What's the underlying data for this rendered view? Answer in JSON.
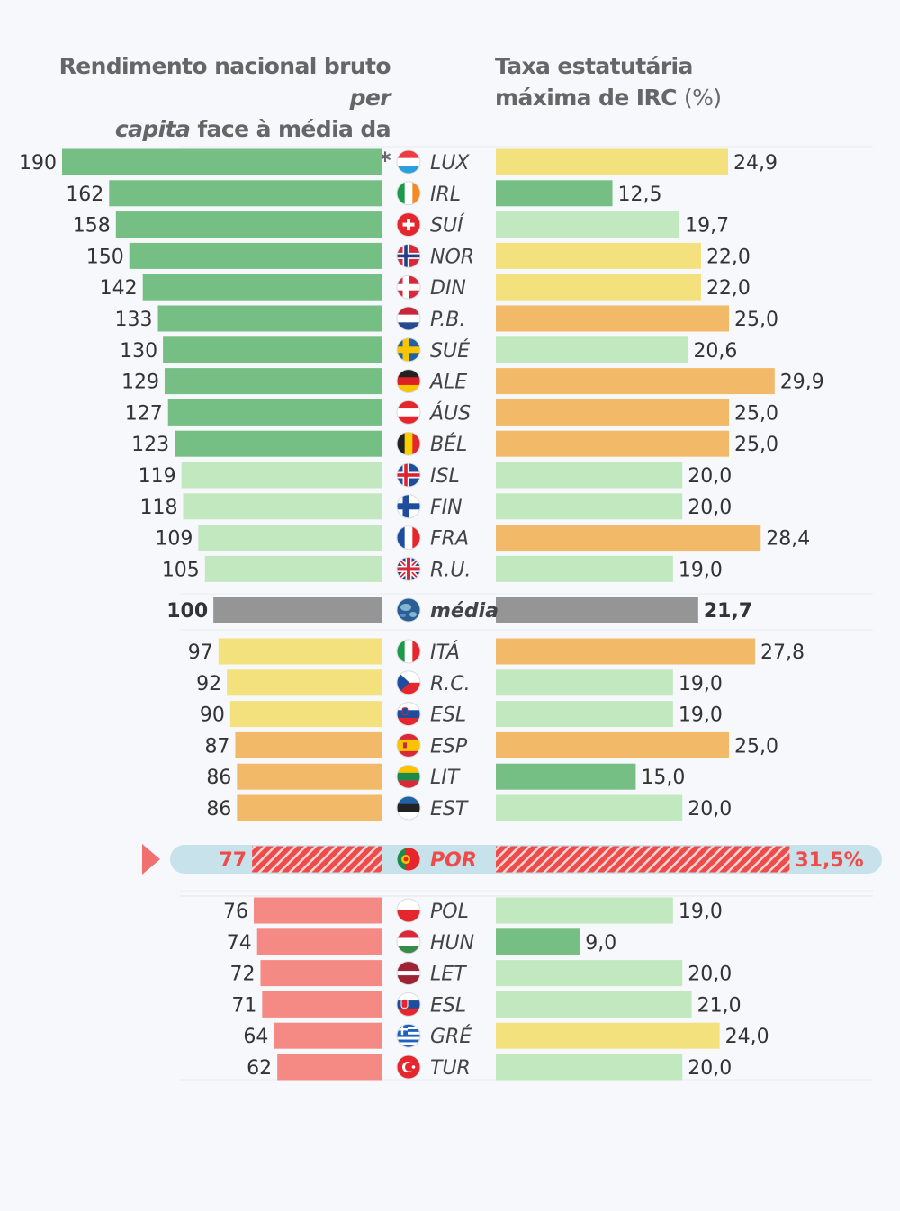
{
  "titles": {
    "left_part1": "Rendimento nacional bruto ",
    "left_italic1": "per",
    "left_italic2": "capita",
    "left_part2": " face à média da região*",
    "right_line1": "Taxa estatutária",
    "right_line2_bold": "máxima de IRC ",
    "right_line2_unit": "(%)"
  },
  "colors": {
    "dark_green": "#75be84",
    "light_green": "#c1e8bf",
    "yellow": "#f3e17e",
    "orange": "#f2b968",
    "red": "#f58a84",
    "grey": "#959595",
    "highlight_red": "#ee4b4b",
    "highlight_band": "#c7e2ea"
  },
  "chart_data": [
    {
      "type": "bar",
      "title": "Rendimento nacional bruto per capita face à média da região*",
      "orientation": "horizontal",
      "categories": [
        "LUX",
        "IRL",
        "SUÍ",
        "NOR",
        "DIN",
        "P.B.",
        "SUÉ",
        "ALE",
        "ÁUS",
        "BÉL",
        "ISL",
        "FIN",
        "FRA",
        "R.U.",
        "média",
        "ITÁ",
        "R.C.",
        "ESL",
        "ESP",
        "LIT",
        "EST",
        "POR",
        "POL",
        "HUN",
        "LET",
        "ESL",
        "GRÉ",
        "TUR"
      ],
      "values": [
        190,
        162,
        158,
        150,
        142,
        133,
        130,
        129,
        127,
        123,
        119,
        118,
        109,
        105,
        100,
        97,
        92,
        90,
        87,
        86,
        86,
        77,
        76,
        74,
        72,
        71,
        64,
        62
      ],
      "labels": [
        "190",
        "162",
        "158",
        "150",
        "142",
        "133",
        "130",
        "129",
        "127",
        "123",
        "119",
        "118",
        "109",
        "105",
        "100",
        "97",
        "92",
        "90",
        "87",
        "86",
        "86",
        "77",
        "76",
        "74",
        "72",
        "71",
        "64",
        "62"
      ]
    },
    {
      "type": "bar",
      "title": "Taxa estatutária máxima de IRC (%)",
      "orientation": "horizontal",
      "categories": [
        "LUX",
        "IRL",
        "SUÍ",
        "NOR",
        "DIN",
        "P.B.",
        "SUÉ",
        "ALE",
        "ÁUS",
        "BÉL",
        "ISL",
        "FIN",
        "FRA",
        "R.U.",
        "média",
        "ITÁ",
        "R.C.",
        "ESL",
        "ESP",
        "LIT",
        "EST",
        "POR",
        "POL",
        "HUN",
        "LET",
        "ESL",
        "GRÉ",
        "TUR"
      ],
      "values": [
        24.9,
        12.5,
        19.7,
        22.0,
        22.0,
        25.0,
        20.6,
        29.9,
        25.0,
        25.0,
        20.0,
        20.0,
        28.4,
        19.0,
        21.7,
        27.8,
        19.0,
        19.0,
        25.0,
        15.0,
        20.0,
        31.5,
        19.0,
        9.0,
        20.0,
        21.0,
        24.0,
        20.0
      ],
      "labels": [
        "24,9",
        "12,5",
        "19,7",
        "22,0",
        "22,0",
        "25,0",
        "20,6",
        "29,9",
        "25,0",
        "25,0",
        "20,0",
        "20,0",
        "28,4",
        "19,0",
        "21,7",
        "27,8",
        "19,0",
        "19,0",
        "25,0",
        "15,0",
        "20,0",
        "31,5%",
        "19,0",
        "9,0",
        "20,0",
        "21,0",
        "24,0",
        "20,0"
      ]
    }
  ],
  "rows": [
    {
      "code": "LUX",
      "flag": "luxembourg-flag-icon",
      "left_color": "dark_green",
      "right_color": "yellow"
    },
    {
      "code": "IRL",
      "flag": "ireland-flag-icon",
      "left_color": "dark_green",
      "right_color": "dark_green"
    },
    {
      "code": "SUÍ",
      "flag": "switzerland-flag-icon",
      "left_color": "dark_green",
      "right_color": "light_green"
    },
    {
      "code": "NOR",
      "flag": "norway-flag-icon",
      "left_color": "dark_green",
      "right_color": "yellow"
    },
    {
      "code": "DIN",
      "flag": "denmark-flag-icon",
      "left_color": "dark_green",
      "right_color": "yellow"
    },
    {
      "code": "P.B.",
      "flag": "netherlands-flag-icon",
      "left_color": "dark_green",
      "right_color": "orange"
    },
    {
      "code": "SUÉ",
      "flag": "sweden-flag-icon",
      "left_color": "dark_green",
      "right_color": "light_green"
    },
    {
      "code": "ALE",
      "flag": "germany-flag-icon",
      "left_color": "dark_green",
      "right_color": "orange"
    },
    {
      "code": "ÁUS",
      "flag": "austria-flag-icon",
      "left_color": "dark_green",
      "right_color": "orange"
    },
    {
      "code": "BÉL",
      "flag": "belgium-flag-icon",
      "left_color": "dark_green",
      "right_color": "orange"
    },
    {
      "code": "ISL",
      "flag": "iceland-flag-icon",
      "left_color": "light_green",
      "right_color": "light_green"
    },
    {
      "code": "FIN",
      "flag": "finland-flag-icon",
      "left_color": "light_green",
      "right_color": "light_green"
    },
    {
      "code": "FRA",
      "flag": "france-flag-icon",
      "left_color": "light_green",
      "right_color": "orange"
    },
    {
      "code": "R.U.",
      "flag": "uk-flag-icon",
      "left_color": "light_green",
      "right_color": "light_green"
    },
    {
      "code": "média",
      "flag": "globe-icon",
      "left_color": "grey",
      "right_color": "grey"
    },
    {
      "code": "ITÁ",
      "flag": "italy-flag-icon",
      "left_color": "yellow",
      "right_color": "orange"
    },
    {
      "code": "R.C.",
      "flag": "czech-flag-icon",
      "left_color": "yellow",
      "right_color": "light_green"
    },
    {
      "code": "ESL",
      "flag": "slovenia-flag-icon",
      "left_color": "yellow",
      "right_color": "light_green"
    },
    {
      "code": "ESP",
      "flag": "spain-flag-icon",
      "left_color": "orange",
      "right_color": "orange"
    },
    {
      "code": "LIT",
      "flag": "lithuania-flag-icon",
      "left_color": "orange",
      "right_color": "dark_green"
    },
    {
      "code": "EST",
      "flag": "estonia-flag-icon",
      "left_color": "orange",
      "right_color": "light_green"
    },
    {
      "code": "POR",
      "flag": "portugal-flag-icon",
      "left_color": "highlight_red",
      "right_color": "highlight_red"
    },
    {
      "code": "POL",
      "flag": "poland-flag-icon",
      "left_color": "red",
      "right_color": "light_green"
    },
    {
      "code": "HUN",
      "flag": "hungary-flag-icon",
      "left_color": "red",
      "right_color": "dark_green"
    },
    {
      "code": "LET",
      "flag": "latvia-flag-icon",
      "left_color": "red",
      "right_color": "light_green"
    },
    {
      "code": "ESL",
      "flag": "slovakia-flag-icon",
      "left_color": "red",
      "right_color": "light_green"
    },
    {
      "code": "GRÉ",
      "flag": "greece-flag-icon",
      "left_color": "red",
      "right_color": "yellow"
    },
    {
      "code": "TUR",
      "flag": "turkey-flag-icon",
      "left_color": "red",
      "right_color": "light_green"
    }
  ]
}
